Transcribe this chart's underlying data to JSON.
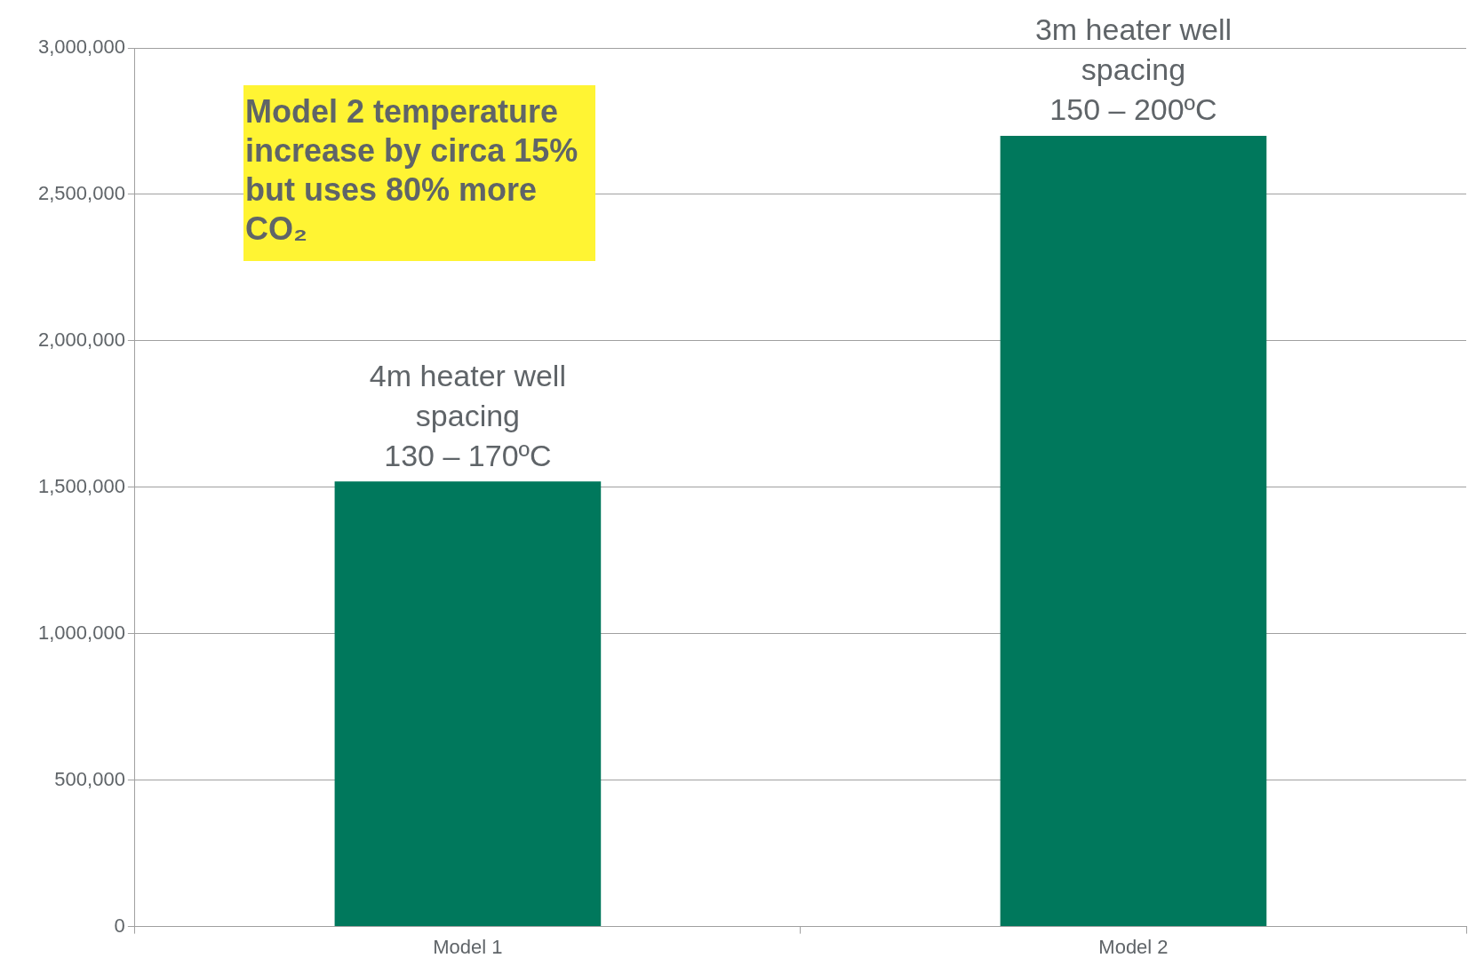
{
  "chart_data": {
    "type": "bar",
    "categories": [
      "Model 1",
      "Model 2"
    ],
    "values": [
      1520000,
      2700000
    ],
    "color": "#00785c",
    "ylim": [
      0,
      3000000
    ],
    "yticks": [
      0,
      {
        "value": 500000,
        "label": "500,000"
      },
      {
        "value": 1000000,
        "label": "1,000,000"
      },
      {
        "value": 1500000,
        "label": "1,500,000"
      },
      {
        "value": 2000000,
        "label": "2,000,000"
      },
      {
        "value": 2500000,
        "label": "2,500,000"
      },
      {
        "value": 3000000,
        "label": "3,000,000"
      }
    ],
    "grid": "y",
    "annotations": [
      {
        "text": "4m heater well\nspacing\n130 – 170ºC",
        "x": "Model 1",
        "y": 1520000
      },
      {
        "text": "3m heater well\nspacing\n150 – 200ºC",
        "x": "Model 2",
        "y": 2700000
      },
      "Model 2 temperature increase by circa 15% but uses 80% more CO₂"
    ]
  }
}
